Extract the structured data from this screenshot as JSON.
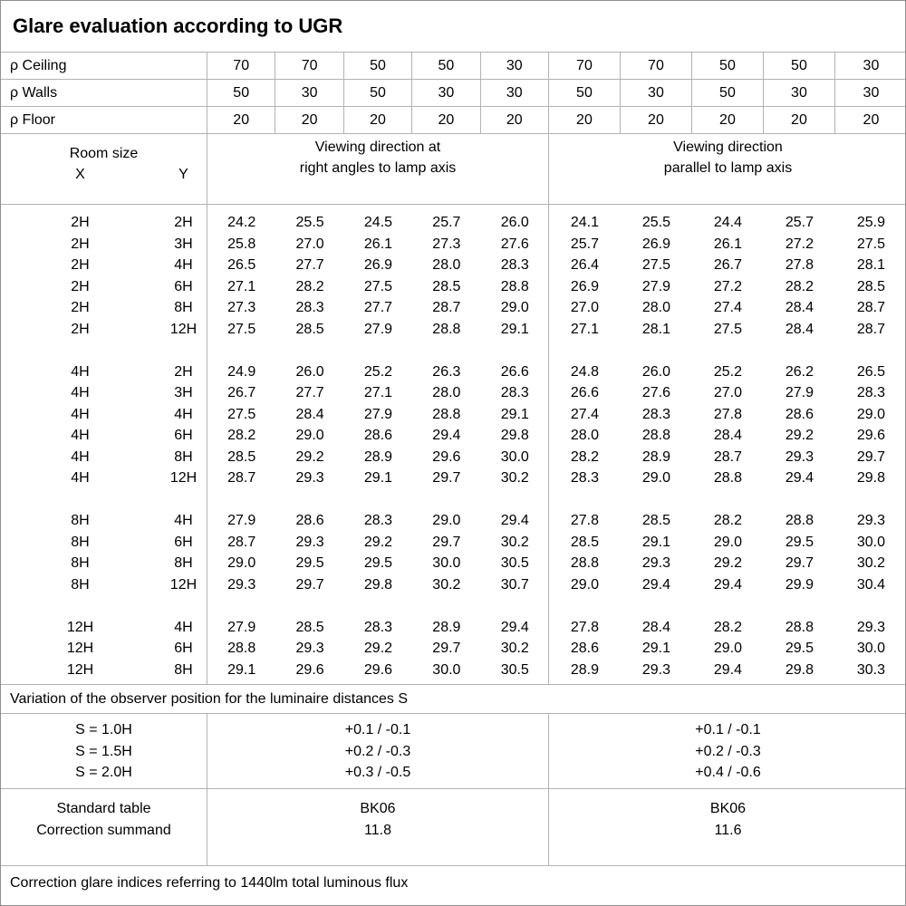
{
  "title": "Glare evaluation according to UGR",
  "colors": {
    "grid_line": "#b2b2b2",
    "outer_border": "#8f8f8f",
    "text": "#000000",
    "background": "#ffffff"
  },
  "reflectance_rows": [
    {
      "label": "ρ Ceiling",
      "values": [
        "70",
        "70",
        "50",
        "50",
        "30",
        "70",
        "70",
        "50",
        "50",
        "30"
      ]
    },
    {
      "label": "ρ Walls",
      "values": [
        "50",
        "30",
        "50",
        "30",
        "30",
        "50",
        "30",
        "50",
        "30",
        "30"
      ]
    },
    {
      "label": "ρ Floor",
      "values": [
        "20",
        "20",
        "20",
        "20",
        "20",
        "20",
        "20",
        "20",
        "20",
        "20"
      ]
    }
  ],
  "header": {
    "room_size": "Room size",
    "x": "X",
    "y": "Y",
    "group_left": [
      "Viewing direction at",
      "right angles to lamp axis"
    ],
    "group_right": [
      "Viewing direction",
      "parallel to lamp axis"
    ]
  },
  "ugr_blocks": [
    {
      "rows": [
        {
          "x": "2H",
          "y": "2H",
          "left": [
            "24.2",
            "25.5",
            "24.5",
            "25.7",
            "26.0"
          ],
          "right": [
            "24.1",
            "25.5",
            "24.4",
            "25.7",
            "25.9"
          ]
        },
        {
          "x": "2H",
          "y": "3H",
          "left": [
            "25.8",
            "27.0",
            "26.1",
            "27.3",
            "27.6"
          ],
          "right": [
            "25.7",
            "26.9",
            "26.1",
            "27.2",
            "27.5"
          ]
        },
        {
          "x": "2H",
          "y": "4H",
          "left": [
            "26.5",
            "27.7",
            "26.9",
            "28.0",
            "28.3"
          ],
          "right": [
            "26.4",
            "27.5",
            "26.7",
            "27.8",
            "28.1"
          ]
        },
        {
          "x": "2H",
          "y": "6H",
          "left": [
            "27.1",
            "28.2",
            "27.5",
            "28.5",
            "28.8"
          ],
          "right": [
            "26.9",
            "27.9",
            "27.2",
            "28.2",
            "28.5"
          ]
        },
        {
          "x": "2H",
          "y": "8H",
          "left": [
            "27.3",
            "28.3",
            "27.7",
            "28.7",
            "29.0"
          ],
          "right": [
            "27.0",
            "28.0",
            "27.4",
            "28.4",
            "28.7"
          ]
        },
        {
          "x": "2H",
          "y": "12H",
          "left": [
            "27.5",
            "28.5",
            "27.9",
            "28.8",
            "29.1"
          ],
          "right": [
            "27.1",
            "28.1",
            "27.5",
            "28.4",
            "28.7"
          ]
        }
      ]
    },
    {
      "rows": [
        {
          "x": "4H",
          "y": "2H",
          "left": [
            "24.9",
            "26.0",
            "25.2",
            "26.3",
            "26.6"
          ],
          "right": [
            "24.8",
            "26.0",
            "25.2",
            "26.2",
            "26.5"
          ]
        },
        {
          "x": "4H",
          "y": "3H",
          "left": [
            "26.7",
            "27.7",
            "27.1",
            "28.0",
            "28.3"
          ],
          "right": [
            "26.6",
            "27.6",
            "27.0",
            "27.9",
            "28.3"
          ]
        },
        {
          "x": "4H",
          "y": "4H",
          "left": [
            "27.5",
            "28.4",
            "27.9",
            "28.8",
            "29.1"
          ],
          "right": [
            "27.4",
            "28.3",
            "27.8",
            "28.6",
            "29.0"
          ]
        },
        {
          "x": "4H",
          "y": "6H",
          "left": [
            "28.2",
            "29.0",
            "28.6",
            "29.4",
            "29.8"
          ],
          "right": [
            "28.0",
            "28.8",
            "28.4",
            "29.2",
            "29.6"
          ]
        },
        {
          "x": "4H",
          "y": "8H",
          "left": [
            "28.5",
            "29.2",
            "28.9",
            "29.6",
            "30.0"
          ],
          "right": [
            "28.2",
            "28.9",
            "28.7",
            "29.3",
            "29.7"
          ]
        },
        {
          "x": "4H",
          "y": "12H",
          "left": [
            "28.7",
            "29.3",
            "29.1",
            "29.7",
            "30.2"
          ],
          "right": [
            "28.3",
            "29.0",
            "28.8",
            "29.4",
            "29.8"
          ]
        }
      ]
    },
    {
      "rows": [
        {
          "x": "8H",
          "y": "4H",
          "left": [
            "27.9",
            "28.6",
            "28.3",
            "29.0",
            "29.4"
          ],
          "right": [
            "27.8",
            "28.5",
            "28.2",
            "28.8",
            "29.3"
          ]
        },
        {
          "x": "8H",
          "y": "6H",
          "left": [
            "28.7",
            "29.3",
            "29.2",
            "29.7",
            "30.2"
          ],
          "right": [
            "28.5",
            "29.1",
            "29.0",
            "29.5",
            "30.0"
          ]
        },
        {
          "x": "8H",
          "y": "8H",
          "left": [
            "29.0",
            "29.5",
            "29.5",
            "30.0",
            "30.5"
          ],
          "right": [
            "28.8",
            "29.3",
            "29.2",
            "29.7",
            "30.2"
          ]
        },
        {
          "x": "8H",
          "y": "12H",
          "left": [
            "29.3",
            "29.7",
            "29.8",
            "30.2",
            "30.7"
          ],
          "right": [
            "29.0",
            "29.4",
            "29.4",
            "29.9",
            "30.4"
          ]
        }
      ]
    },
    {
      "rows": [
        {
          "x": "12H",
          "y": "4H",
          "left": [
            "27.9",
            "28.5",
            "28.3",
            "28.9",
            "29.4"
          ],
          "right": [
            "27.8",
            "28.4",
            "28.2",
            "28.8",
            "29.3"
          ]
        },
        {
          "x": "12H",
          "y": "6H",
          "left": [
            "28.8",
            "29.3",
            "29.2",
            "29.7",
            "30.2"
          ],
          "right": [
            "28.6",
            "29.1",
            "29.0",
            "29.5",
            "30.0"
          ]
        },
        {
          "x": "12H",
          "y": "8H",
          "left": [
            "29.1",
            "29.6",
            "29.6",
            "30.0",
            "30.5"
          ],
          "right": [
            "28.9",
            "29.3",
            "29.4",
            "29.8",
            "30.3"
          ]
        }
      ]
    }
  ],
  "variation_note": "Variation of the observer position for the luminaire distances S",
  "observer_variation": {
    "labels": [
      "S = 1.0H",
      "S = 1.5H",
      "S = 2.0H"
    ],
    "left": [
      "+0.1 / -0.1",
      "+0.2 / -0.3",
      "+0.3 / -0.5"
    ],
    "right": [
      "+0.1 / -0.1",
      "+0.2 / -0.3",
      "+0.4 / -0.6"
    ]
  },
  "standard": {
    "labels": [
      "Standard table",
      "Correction summand"
    ],
    "left": [
      "BK06",
      "11.8"
    ],
    "right": [
      "BK06",
      "11.6"
    ]
  },
  "footer": "Correction glare indices referring to 1440lm total luminous flux"
}
